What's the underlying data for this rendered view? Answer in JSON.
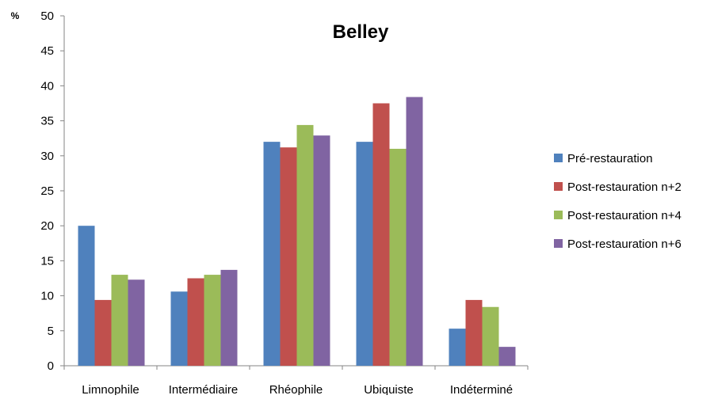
{
  "chart_data": {
    "type": "bar",
    "title": "Belley",
    "ylabel": "%",
    "xlabel": "",
    "ylim": [
      0,
      50
    ],
    "yticks": [
      0,
      5,
      10,
      15,
      20,
      25,
      30,
      35,
      40,
      45,
      50
    ],
    "grid": false,
    "legend_position": "right",
    "categories": [
      "Limnophile",
      "Intermédiaire",
      "Rhéophile",
      "Ubiquiste",
      "Indéterminé"
    ],
    "series": [
      {
        "name": "Pré-restauration",
        "color": "#4F81BD",
        "values": [
          20.0,
          10.6,
          32.0,
          32.0,
          5.3
        ]
      },
      {
        "name": "Post-restauration n+2",
        "color": "#C0504D",
        "values": [
          9.4,
          12.5,
          31.2,
          37.5,
          9.4
        ]
      },
      {
        "name": "Post-restauration n+4",
        "color": "#9BBB59",
        "values": [
          13.0,
          13.0,
          34.4,
          31.0,
          8.4
        ]
      },
      {
        "name": "Post-restauration n+6",
        "color": "#8064A2",
        "values": [
          12.3,
          13.7,
          32.9,
          38.4,
          2.7
        ]
      }
    ]
  }
}
